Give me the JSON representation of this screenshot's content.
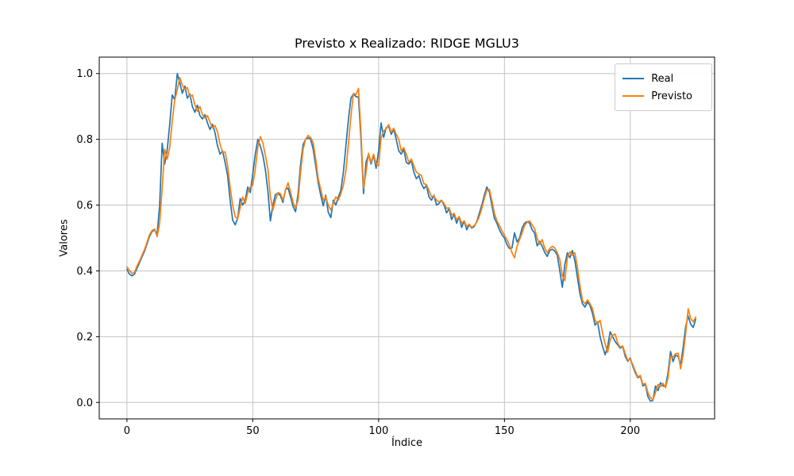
{
  "chart_data": {
    "type": "line",
    "title": "Previsto x Realizado: RIDGE MGLU3",
    "xlabel": "Índice",
    "ylabel": "Valores",
    "x_start": 0,
    "x_step": 1,
    "xlim": [
      -11.0,
      233.5
    ],
    "ylim": [
      -0.05,
      1.05
    ],
    "grid": true,
    "legend_position": "upper right",
    "x_ticks": [
      0,
      50,
      100,
      150,
      200
    ],
    "x_tick_labels": [
      "0",
      "50",
      "100",
      "150",
      "200"
    ],
    "y_ticks": [
      0.0,
      0.2,
      0.4,
      0.6,
      0.8,
      1.0
    ],
    "y_tick_labels": [
      "0.0",
      "0.2",
      "0.4",
      "0.6",
      "0.8",
      "1.0"
    ],
    "colors": {
      "grid": "#c3c3c3",
      "axes": "#000000",
      "background": "#ffffff"
    },
    "series": [
      {
        "name": "Real",
        "color": "#1f77b4",
        "values": [
          0.405,
          0.39,
          0.385,
          0.39,
          0.408,
          0.425,
          0.443,
          0.46,
          0.483,
          0.505,
          0.52,
          0.524,
          0.512,
          0.6,
          0.788,
          0.725,
          0.768,
          0.845,
          0.935,
          0.92,
          1.0,
          0.972,
          0.94,
          0.962,
          0.925,
          0.938,
          0.9,
          0.882,
          0.904,
          0.872,
          0.862,
          0.875,
          0.85,
          0.83,
          0.846,
          0.82,
          0.78,
          0.755,
          0.765,
          0.73,
          0.69,
          0.615,
          0.555,
          0.54,
          0.56,
          0.62,
          0.6,
          0.615,
          0.655,
          0.638,
          0.695,
          0.755,
          0.8,
          0.78,
          0.752,
          0.708,
          0.644,
          0.552,
          0.6,
          0.632,
          0.636,
          0.628,
          0.608,
          0.648,
          0.652,
          0.625,
          0.596,
          0.58,
          0.635,
          0.724,
          0.784,
          0.8,
          0.805,
          0.8,
          0.77,
          0.72,
          0.668,
          0.63,
          0.598,
          0.63,
          0.578,
          0.562,
          0.615,
          0.6,
          0.625,
          0.645,
          0.7,
          0.78,
          0.86,
          0.925,
          0.938,
          0.93,
          0.928,
          0.8,
          0.635,
          0.73,
          0.755,
          0.725,
          0.752,
          0.712,
          0.765,
          0.85,
          0.806,
          0.835,
          0.84,
          0.815,
          0.83,
          0.8,
          0.765,
          0.755,
          0.77,
          0.73,
          0.725,
          0.735,
          0.7,
          0.68,
          0.69,
          0.665,
          0.65,
          0.66,
          0.625,
          0.615,
          0.63,
          0.6,
          0.605,
          0.615,
          0.6,
          0.576,
          0.59,
          0.556,
          0.572,
          0.545,
          0.565,
          0.532,
          0.552,
          0.525,
          0.54,
          0.53,
          0.535,
          0.55,
          0.575,
          0.6,
          0.63,
          0.655,
          0.64,
          0.6,
          0.56,
          0.545,
          0.525,
          0.51,
          0.5,
          0.48,
          0.468,
          0.47,
          0.516,
          0.488,
          0.5,
          0.53,
          0.545,
          0.55,
          0.545,
          0.525,
          0.515,
          0.476,
          0.49,
          0.475,
          0.456,
          0.444,
          0.462,
          0.466,
          0.46,
          0.448,
          0.4,
          0.35,
          0.42,
          0.455,
          0.44,
          0.462,
          0.43,
          0.38,
          0.33,
          0.3,
          0.29,
          0.305,
          0.295,
          0.27,
          0.235,
          0.245,
          0.2,
          0.17,
          0.145,
          0.17,
          0.215,
          0.2,
          0.185,
          0.175,
          0.165,
          0.17,
          0.14,
          0.125,
          0.135,
          0.11,
          0.09,
          0.075,
          0.08,
          0.05,
          0.055,
          0.018,
          0.004,
          0.006,
          0.05,
          0.036,
          0.06,
          0.05,
          0.048,
          0.09,
          0.155,
          0.124,
          0.144,
          0.14,
          0.114,
          0.168,
          0.23,
          0.263,
          0.238,
          0.228,
          0.253
        ]
      },
      {
        "name": "Previsto",
        "color": "#ff7f0e",
        "values": [
          0.412,
          0.402,
          0.392,
          0.395,
          0.415,
          0.43,
          0.448,
          0.465,
          0.488,
          0.51,
          0.523,
          0.527,
          0.504,
          0.545,
          0.65,
          0.77,
          0.74,
          0.775,
          0.855,
          0.92,
          0.95,
          0.988,
          0.965,
          0.952,
          0.958,
          0.93,
          0.935,
          0.905,
          0.885,
          0.9,
          0.875,
          0.865,
          0.872,
          0.852,
          0.835,
          0.842,
          0.822,
          0.785,
          0.76,
          0.762,
          0.72,
          0.655,
          0.6,
          0.565,
          0.558,
          0.592,
          0.625,
          0.605,
          0.638,
          0.655,
          0.66,
          0.71,
          0.775,
          0.808,
          0.79,
          0.752,
          0.71,
          0.625,
          0.585,
          0.615,
          0.638,
          0.635,
          0.615,
          0.645,
          0.668,
          0.64,
          0.608,
          0.592,
          0.615,
          0.7,
          0.77,
          0.8,
          0.812,
          0.805,
          0.79,
          0.74,
          0.68,
          0.648,
          0.615,
          0.625,
          0.6,
          0.585,
          0.605,
          0.625,
          0.615,
          0.635,
          0.66,
          0.705,
          0.785,
          0.87,
          0.94,
          0.936,
          0.955,
          0.82,
          0.65,
          0.7,
          0.758,
          0.73,
          0.755,
          0.725,
          0.72,
          0.805,
          0.825,
          0.832,
          0.845,
          0.822,
          0.834,
          0.815,
          0.8,
          0.765,
          0.775,
          0.755,
          0.73,
          0.74,
          0.72,
          0.7,
          0.695,
          0.69,
          0.665,
          0.662,
          0.645,
          0.625,
          0.628,
          0.615,
          0.61,
          0.615,
          0.605,
          0.59,
          0.592,
          0.57,
          0.575,
          0.555,
          0.565,
          0.545,
          0.552,
          0.535,
          0.542,
          0.532,
          0.538,
          0.548,
          0.565,
          0.59,
          0.62,
          0.645,
          0.648,
          0.615,
          0.575,
          0.552,
          0.538,
          0.522,
          0.508,
          0.495,
          0.478,
          0.455,
          0.44,
          0.475,
          0.495,
          0.515,
          0.538,
          0.548,
          0.552,
          0.54,
          0.528,
          0.5,
          0.48,
          0.495,
          0.47,
          0.455,
          0.468,
          0.475,
          0.47,
          0.455,
          0.435,
          0.385,
          0.37,
          0.44,
          0.458,
          0.448,
          0.455,
          0.41,
          0.355,
          0.31,
          0.3,
          0.312,
          0.3,
          0.285,
          0.25,
          0.24,
          0.25,
          0.21,
          0.178,
          0.152,
          0.19,
          0.205,
          0.208,
          0.18,
          0.168,
          0.172,
          0.148,
          0.128,
          0.132,
          0.115,
          0.095,
          0.078,
          0.082,
          0.055,
          0.058,
          0.03,
          0.015,
          0.008,
          0.03,
          0.055,
          0.048,
          0.058,
          0.045,
          0.075,
          0.14,
          0.138,
          0.148,
          0.15,
          0.102,
          0.145,
          0.21,
          0.285,
          0.255,
          0.245,
          0.26
        ]
      }
    ]
  }
}
